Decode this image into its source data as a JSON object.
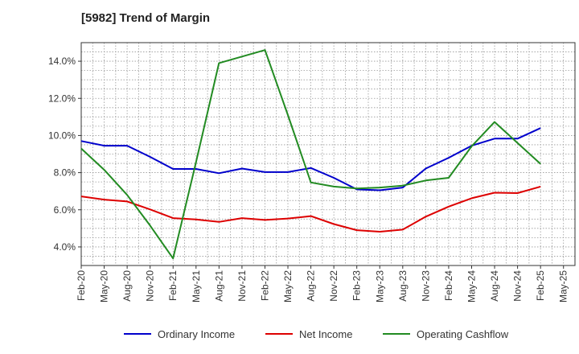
{
  "chart_data": {
    "type": "line",
    "title": "[5982]  Trend of Margin",
    "xlabel": "",
    "ylabel": "",
    "categories": [
      "Feb-20",
      "May-20",
      "Aug-20",
      "Nov-20",
      "Feb-21",
      "May-21",
      "Aug-21",
      "Nov-21",
      "Feb-22",
      "May-22",
      "Aug-22",
      "Nov-22",
      "Feb-23",
      "May-23",
      "Aug-23",
      "Nov-23",
      "Feb-24",
      "May-24",
      "Aug-24",
      "Nov-24",
      "Feb-25",
      "May-25"
    ],
    "ylim": [
      3.0,
      15.0
    ],
    "yticks": [
      4.0,
      6.0,
      8.0,
      10.0,
      12.0,
      14.0
    ],
    "ytick_labels": [
      "4.0%",
      "6.0%",
      "8.0%",
      "10.0%",
      "12.0%",
      "14.0%"
    ],
    "grid": true,
    "legend_position": "bottom",
    "series": [
      {
        "name": "Ordinary Income",
        "color": "#0000cc",
        "values": [
          9.7,
          9.45,
          9.45,
          8.85,
          8.2,
          8.2,
          7.97,
          8.22,
          8.03,
          8.03,
          8.25,
          7.72,
          7.1,
          7.05,
          7.2,
          8.22,
          8.8,
          9.45,
          9.83,
          9.83,
          10.4,
          null
        ]
      },
      {
        "name": "Net Income",
        "color": "#dd0000",
        "values": [
          6.72,
          6.55,
          6.45,
          6.02,
          5.55,
          5.48,
          5.35,
          5.55,
          5.45,
          5.53,
          5.66,
          5.23,
          4.9,
          4.82,
          4.93,
          5.63,
          6.17,
          6.62,
          6.92,
          6.9,
          7.25,
          null
        ]
      },
      {
        "name": "Operating Cashflow",
        "color": "#228b22",
        "values": [
          9.3,
          8.15,
          6.8,
          5.15,
          3.38,
          8.57,
          13.9,
          14.25,
          14.6,
          11.1,
          7.47,
          7.25,
          7.15,
          7.2,
          7.3,
          7.58,
          7.72,
          9.42,
          10.73,
          9.6,
          8.47,
          null
        ]
      }
    ]
  }
}
